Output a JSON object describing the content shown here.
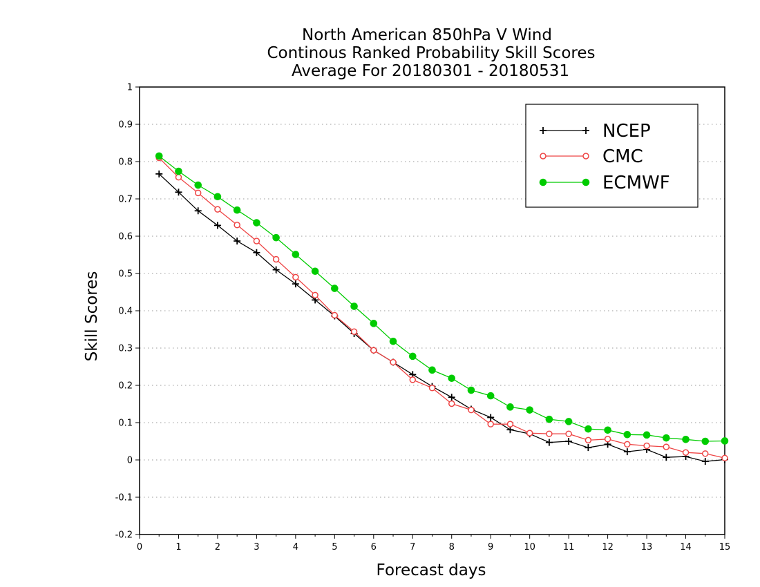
{
  "chart_data": {
    "type": "line",
    "title": [
      "North American 850hPa V Wind",
      "Continous Ranked Probability Skill Scores",
      "Average For 20180301 - 20180531"
    ],
    "xlabel": "Forecast days",
    "ylabel": "Skill Scores",
    "xlim": [
      0,
      15
    ],
    "ylim": [
      -0.2,
      1
    ],
    "x_ticks": [
      "0",
      "1",
      "2",
      "3",
      "4",
      "5",
      "6",
      "7",
      "8",
      "9",
      "10",
      "11",
      "12",
      "13",
      "14",
      "15"
    ],
    "y_ticks": [
      "-0.2",
      "-0.1",
      "0",
      "0.1",
      "0.2",
      "0.3",
      "0.4",
      "0.5",
      "0.6",
      "0.7",
      "0.8",
      "0.9",
      "1"
    ],
    "grid": "horizontal-dotted",
    "legend_position": "top-right",
    "x": [
      0.5,
      1,
      1.5,
      2,
      2.5,
      3,
      3.5,
      4,
      4.5,
      5,
      5.5,
      6,
      6.5,
      7,
      7.5,
      8,
      8.5,
      9,
      9.5,
      10,
      10.5,
      11,
      11.5,
      12,
      12.5,
      13,
      13.5,
      14,
      14.5,
      15
    ],
    "series": [
      {
        "name": "NCEP",
        "color": "#000000",
        "marker": "plus",
        "values": [
          0.767,
          0.718,
          0.668,
          0.629,
          0.587,
          0.556,
          0.51,
          0.472,
          0.429,
          0.386,
          0.339,
          0.294,
          0.262,
          0.229,
          0.197,
          0.168,
          0.136,
          0.114,
          0.081,
          0.07,
          0.047,
          0.05,
          0.033,
          0.042,
          0.022,
          0.028,
          0.007,
          0.009,
          -0.004,
          0.001
        ]
      },
      {
        "name": "CMC",
        "color": "#ee4444",
        "marker": "open-circle",
        "values": [
          0.81,
          0.758,
          0.716,
          0.672,
          0.63,
          0.587,
          0.538,
          0.49,
          0.442,
          0.388,
          0.344,
          0.294,
          0.262,
          0.215,
          0.193,
          0.151,
          0.134,
          0.096,
          0.096,
          0.072,
          0.07,
          0.07,
          0.053,
          0.056,
          0.042,
          0.038,
          0.035,
          0.02,
          0.017,
          0.005
        ]
      },
      {
        "name": "ECMWF",
        "color": "#00cc00",
        "marker": "filled-circle",
        "values": [
          0.815,
          0.774,
          0.737,
          0.706,
          0.67,
          0.636,
          0.596,
          0.551,
          0.506,
          0.46,
          0.412,
          0.366,
          0.318,
          0.278,
          0.241,
          0.219,
          0.187,
          0.172,
          0.142,
          0.134,
          0.109,
          0.103,
          0.083,
          0.08,
          0.068,
          0.067,
          0.059,
          0.055,
          0.05,
          0.051
        ]
      }
    ]
  }
}
